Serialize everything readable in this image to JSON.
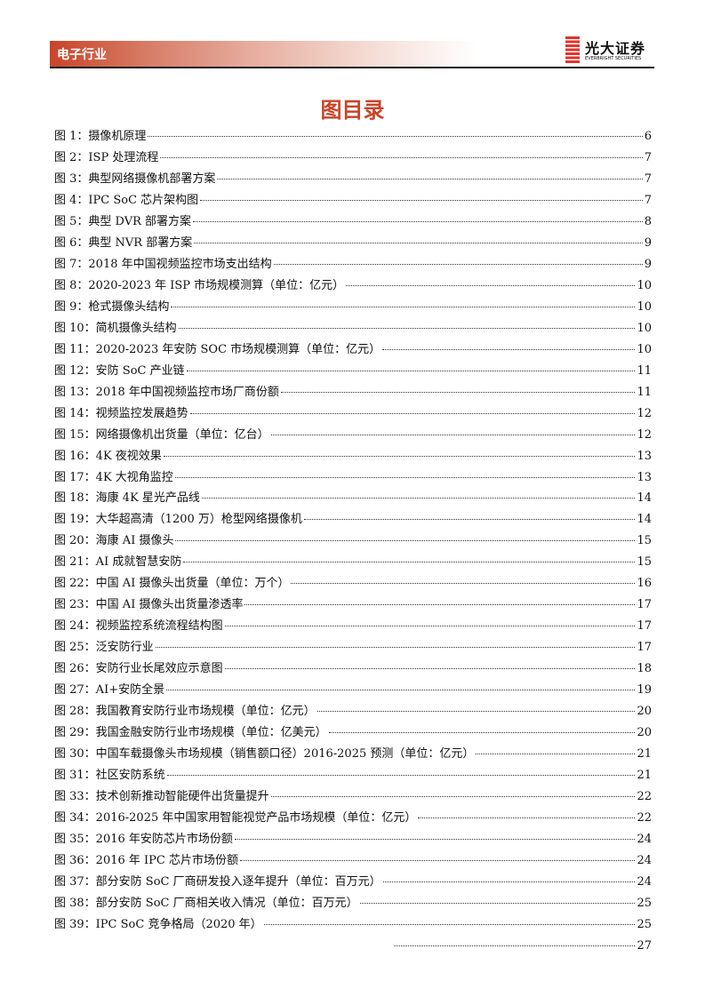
{
  "header": {
    "section": "电子行业",
    "brand_cn": "光大证券",
    "brand_en": "EVERBRIGHT SECURITIES",
    "accent": "#c8452a"
  },
  "title": "图目录",
  "entries": [
    {
      "label": "图 1：摄像机原理",
      "page": "6"
    },
    {
      "label": "图 2：ISP 处理流程",
      "page": "7"
    },
    {
      "label": "图 3：典型网络摄像机部署方案",
      "page": "7"
    },
    {
      "label": "图 4：IPC SoC 芯片架构图",
      "page": "7"
    },
    {
      "label": "图 5：典型 DVR 部署方案",
      "page": "8"
    },
    {
      "label": "图 6：典型 NVR 部署方案",
      "page": "9"
    },
    {
      "label": "图 7：2018 年中国视频监控市场支出结构",
      "page": "9"
    },
    {
      "label": "图 8：2020-2023 年 ISP 市场规模测算（单位：亿元）",
      "page": "10"
    },
    {
      "label": "图 9：枪式摄像头结构",
      "page": "10"
    },
    {
      "label": "图 10：简机摄像头结构",
      "page": "10"
    },
    {
      "label": "图 11：2020-2023 年安防 SOC 市场规模测算（单位：亿元）",
      "page": "10"
    },
    {
      "label": "图 12：安防 SoC 产业链",
      "page": "11"
    },
    {
      "label": "图 13：2018 年中国视频监控市场厂商份额",
      "page": "11"
    },
    {
      "label": "图 14：视频监控发展趋势",
      "page": "12"
    },
    {
      "label": "图 15：网络摄像机出货量（单位：亿台）",
      "page": "12"
    },
    {
      "label": "图 16：4K 夜视效果",
      "page": "13"
    },
    {
      "label": "图 17：4K 大视角监控",
      "page": "13"
    },
    {
      "label": "图 18：海康 4K 星光产品线",
      "page": "14"
    },
    {
      "label": "图 19：大华超高清（1200 万）枪型网络摄像机",
      "page": "14"
    },
    {
      "label": "图 20：海康 AI 摄像头",
      "page": "15"
    },
    {
      "label": "图 21：AI 成就智慧安防",
      "page": "15"
    },
    {
      "label": "图 22：中国 AI 摄像头出货量（单位：万个）",
      "page": "16"
    },
    {
      "label": "图 23：中国 AI 摄像头出货量渗透率",
      "page": "17"
    },
    {
      "label": "图 24：视频监控系统流程结构图",
      "page": "17"
    },
    {
      "label": "图 25：泛安防行业",
      "page": "17"
    },
    {
      "label": "图 26：安防行业长尾效应示意图",
      "page": "18"
    },
    {
      "label": "图 27：AI+安防全景",
      "page": "19"
    },
    {
      "label": "图 28：我国教育安防行业市场规模（单位：亿元）",
      "page": "20"
    },
    {
      "label": "图 29：我国金融安防行业市场规模（单位：亿美元）",
      "page": "20"
    },
    {
      "label": "图 30：中国车载摄像头市场规模（销售额口径）2016-2025 预测（单位：亿元）",
      "page": "21"
    },
    {
      "label": "图 31：社区安防系统",
      "page": "21"
    },
    {
      "label": "图 33：技术创新推动智能硬件出货量提升",
      "page": "22"
    },
    {
      "label": "图 34：2016-2025 年中国家用智能视觉产品市场规模（单位：亿元）",
      "page": "22"
    },
    {
      "label": "图 35：2016 年安防芯片市场份额",
      "page": "24"
    },
    {
      "label": "图 36：2016 年 IPC 芯片市场份额",
      "page": "24"
    },
    {
      "label": "图 37：部分安防 SoC 厂商研发投入逐年提升（单位：百万元）",
      "page": "24"
    },
    {
      "label": "图 38：部分安防 SoC 厂商相关收入情况（单位：百万元）",
      "page": "25"
    },
    {
      "label": "图 39：IPC SoC 竞争格局（2020 年）",
      "page": "25"
    },
    {
      "label": "",
      "page": "27"
    }
  ]
}
